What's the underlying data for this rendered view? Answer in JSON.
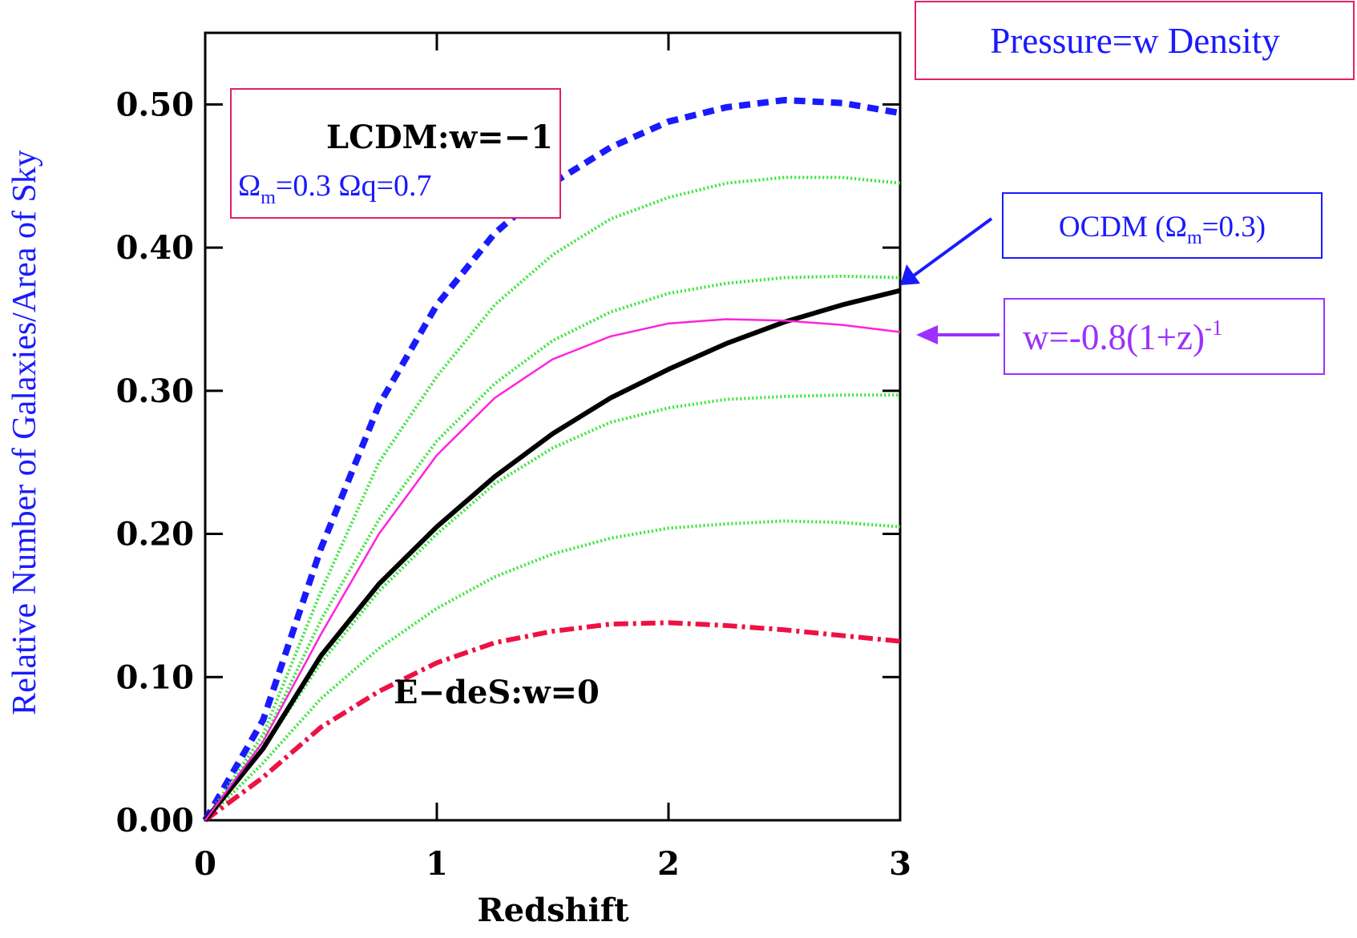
{
  "chart_data": {
    "type": "line",
    "y_label": "Relative Number of Galaxies/Area of Sky",
    "x_label": "Redshift",
    "x": [
      0,
      0.25,
      0.5,
      0.75,
      1,
      1.25,
      1.5,
      1.75,
      2,
      2.25,
      2.5,
      2.75,
      3
    ],
    "series": [
      {
        "color": "#1a1aff",
        "style": "dashed",
        "values": [
          0,
          0.07,
          0.19,
          0.29,
          0.36,
          0.41,
          0.445,
          0.47,
          0.488,
          0.498,
          0.503,
          0.501,
          0.494
        ]
      },
      {
        "color": "#33e633",
        "style": "dotted",
        "values": [
          0,
          0.06,
          0.16,
          0.25,
          0.31,
          0.36,
          0.395,
          0.42,
          0.435,
          0.445,
          0.449,
          0.449,
          0.445
        ]
      },
      {
        "color": "#33e633",
        "style": "dotted",
        "values": [
          0,
          0.055,
          0.14,
          0.21,
          0.265,
          0.305,
          0.335,
          0.355,
          0.368,
          0.375,
          0.379,
          0.38,
          0.379
        ]
      },
      {
        "color": "#33e633",
        "style": "dotted",
        "values": [
          0,
          0.05,
          0.11,
          0.16,
          0.2,
          0.235,
          0.26,
          0.278,
          0.288,
          0.294,
          0.296,
          0.297,
          0.297
        ]
      },
      {
        "color": "#33e633",
        "style": "dotted",
        "values": [
          0,
          0.04,
          0.085,
          0.12,
          0.148,
          0.17,
          0.186,
          0.197,
          0.204,
          0.207,
          0.209,
          0.208,
          0.205
        ]
      },
      {
        "color": "#ee1144",
        "style": "dashdot",
        "values": [
          0,
          0.03,
          0.065,
          0.09,
          0.11,
          0.124,
          0.132,
          0.137,
          0.138,
          0.136,
          0.133,
          0.129,
          0.125
        ]
      },
      {
        "color": "#000000",
        "style": "solid-thick",
        "values": [
          0,
          0.05,
          0.115,
          0.165,
          0.205,
          0.24,
          0.27,
          0.295,
          0.315,
          0.333,
          0.348,
          0.36,
          0.37
        ]
      },
      {
        "color": "#ff22dd",
        "style": "solid",
        "values": [
          0,
          0.055,
          0.13,
          0.2,
          0.255,
          0.295,
          0.322,
          0.338,
          0.347,
          0.35,
          0.349,
          0.346,
          0.341
        ]
      }
    ],
    "xlim": [
      0,
      3
    ],
    "xticks": [
      0,
      1,
      2,
      3
    ],
    "ylim": [
      0,
      0.55
    ],
    "yticks": [
      {
        "value": 0,
        "label": "0.00"
      },
      {
        "value": 0.1,
        "label": "0.10"
      },
      {
        "value": 0.2,
        "label": "0.20"
      },
      {
        "value": 0.3,
        "label": "0.30"
      },
      {
        "value": 0.4,
        "label": "0.40"
      },
      {
        "value": 0.5,
        "label": "0.50"
      }
    ],
    "annotations": {
      "pressure": "Pressure=w Density",
      "lcdm": "LCDM:w=−1",
      "lcdm_params": [
        "Ω",
        "m",
        "=0.3 Ωq=0.7"
      ],
      "ocdm": [
        "OCDM (Ω",
        "m",
        "=0.3)"
      ],
      "wz": [
        "w=-0.8(1+z)",
        "-1"
      ],
      "edes": "E−deS:w=0"
    }
  }
}
